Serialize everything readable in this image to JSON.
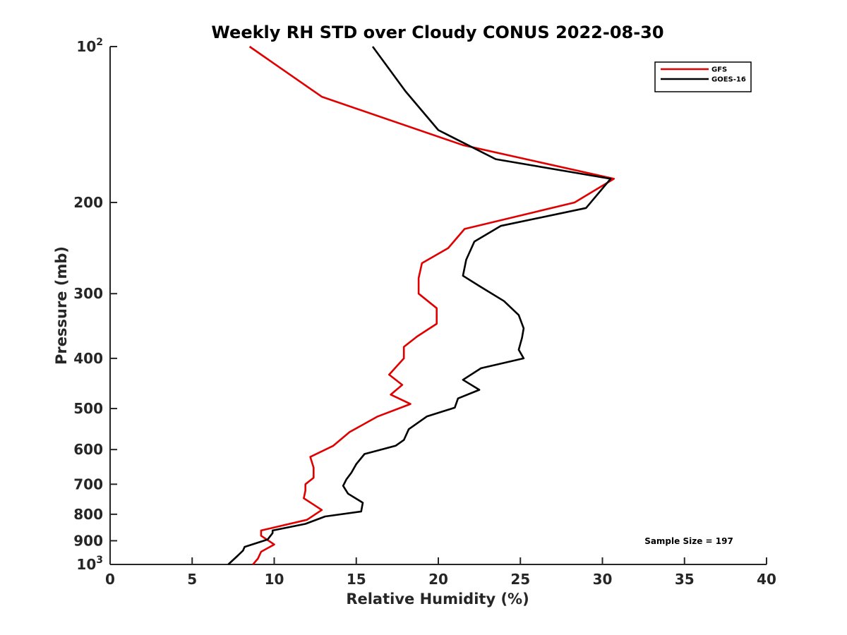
{
  "chart_data": {
    "type": "line",
    "title": "Weekly RH STD over Cloudy CONUS 2022-08-30",
    "xlabel": "Relative Humidity (%)",
    "ylabel": "Pressure (mb)",
    "xlim": [
      0,
      40
    ],
    "ylim": [
      100,
      1000
    ],
    "y_scale": "log",
    "y_reversed": true,
    "grid": false,
    "legend_position": "top-right",
    "x_ticks": [
      {
        "value": 0,
        "label": "0"
      },
      {
        "value": 5,
        "label": "5"
      },
      {
        "value": 10,
        "label": "10"
      },
      {
        "value": 15,
        "label": "15"
      },
      {
        "value": 20,
        "label": "20"
      },
      {
        "value": 25,
        "label": "25"
      },
      {
        "value": 30,
        "label": "30"
      },
      {
        "value": 35,
        "label": "35"
      },
      {
        "value": 40,
        "label": "40"
      }
    ],
    "y_ticks": [
      {
        "value": 100,
        "base": "10",
        "sup": "2"
      },
      {
        "value": 200,
        "base": "200",
        "sup": ""
      },
      {
        "value": 300,
        "base": "300",
        "sup": ""
      },
      {
        "value": 400,
        "base": "400",
        "sup": ""
      },
      {
        "value": 500,
        "base": "500",
        "sup": ""
      },
      {
        "value": 600,
        "base": "600",
        "sup": ""
      },
      {
        "value": 700,
        "base": "700",
        "sup": ""
      },
      {
        "value": 800,
        "base": "800",
        "sup": ""
      },
      {
        "value": 900,
        "base": "900",
        "sup": ""
      },
      {
        "value": 1000,
        "base": "10",
        "sup": "3"
      }
    ],
    "series": [
      {
        "name": "GFS",
        "color": "#e00000",
        "x": [
          8.5,
          12.9,
          21.5,
          30.7,
          28.3,
          21.6,
          20.6,
          19.0,
          18.8,
          18.8,
          19.9,
          19.9,
          18.7,
          17.9,
          17.9,
          17.0,
          17.8,
          17.1,
          18.3,
          16.3,
          14.6,
          13.6,
          12.2,
          12.4,
          12.4,
          11.9,
          11.9,
          11.8,
          12.9,
          12.0,
          9.2,
          9.2,
          10.0,
          9.2,
          9.0,
          8.7
        ],
        "y": [
          100,
          125,
          155,
          180,
          200,
          225,
          245,
          262,
          280,
          300,
          320,
          343,
          363,
          380,
          400,
          430,
          450,
          470,
          490,
          518,
          555,
          590,
          620,
          650,
          680,
          700,
          720,
          745,
          785,
          820,
          860,
          880,
          915,
          945,
          975,
          1000
        ]
      },
      {
        "name": "GOES-16",
        "color": "#000000",
        "x": [
          16.0,
          18.0,
          20.0,
          23.5,
          30.5,
          29.0,
          23.8,
          22.2,
          21.7,
          21.5,
          22.5,
          24.0,
          24.9,
          25.2,
          25.1,
          24.9,
          25.2,
          22.6,
          21.5,
          22.5,
          21.2,
          21.0,
          19.3,
          18.2,
          17.9,
          17.4,
          15.5,
          15.0,
          14.7,
          14.4,
          14.2,
          14.5,
          15.4,
          15.3,
          13.1,
          11.9,
          9.9,
          9.9,
          9.6,
          8.2,
          8.1,
          7.8,
          7.2
        ],
        "y": [
          100,
          122,
          145,
          165,
          180,
          205,
          222,
          238,
          258,
          277,
          290,
          310,
          330,
          350,
          365,
          385,
          400,
          418,
          440,
          460,
          478,
          498,
          518,
          548,
          575,
          590,
          612,
          640,
          665,
          685,
          705,
          730,
          760,
          790,
          808,
          835,
          860,
          870,
          895,
          925,
          940,
          960,
          1000
        ]
      }
    ],
    "annotation": "Sample Size = 197"
  }
}
